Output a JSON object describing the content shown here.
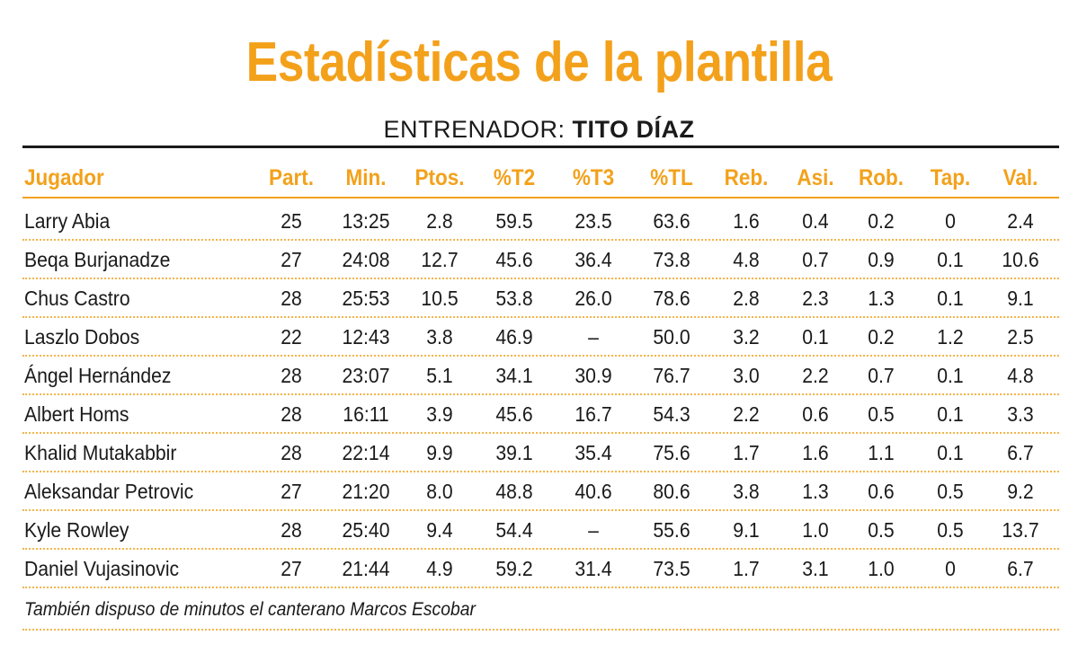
{
  "title": "Estadísticas de la plantilla",
  "coach": {
    "label": "ENTRENADOR: ",
    "name": "TITO DÍAZ"
  },
  "colors": {
    "accent": "#f3a11b",
    "text": "#1a1a1a"
  },
  "table": {
    "headers": [
      "Jugador",
      "Part.",
      "Min.",
      "Ptos.",
      "%T2",
      "%T3",
      "%TL",
      "Reb.",
      "Asi.",
      "Rob.",
      "Tap.",
      "Val."
    ],
    "rows": [
      [
        "Larry Abia",
        "25",
        "13:25",
        "2.8",
        "59.5",
        "23.5",
        "63.6",
        "1.6",
        "0.4",
        "0.2",
        "0",
        "2.4"
      ],
      [
        "Beqa Burjanadze",
        "27",
        "24:08",
        "12.7",
        "45.6",
        "36.4",
        "73.8",
        "4.8",
        "0.7",
        "0.9",
        "0.1",
        "10.6"
      ],
      [
        "Chus Castro",
        "28",
        "25:53",
        "10.5",
        "53.8",
        "26.0",
        "78.6",
        "2.8",
        "2.3",
        "1.3",
        "0.1",
        "9.1"
      ],
      [
        "Laszlo Dobos",
        "22",
        "12:43",
        "3.8",
        "46.9",
        "–",
        "50.0",
        "3.2",
        "0.1",
        "0.2",
        "1.2",
        "2.5"
      ],
      [
        "Ángel Hernández",
        "28",
        "23:07",
        "5.1",
        "34.1",
        "30.9",
        "76.7",
        "3.0",
        "2.2",
        "0.7",
        "0.1",
        "4.8"
      ],
      [
        "Albert Homs",
        "28",
        "16:11",
        "3.9",
        "45.6",
        "16.7",
        "54.3",
        "2.2",
        "0.6",
        "0.5",
        "0.1",
        "3.3"
      ],
      [
        "Khalid Mutakabbir",
        "28",
        "22:14",
        "9.9",
        "39.1",
        "35.4",
        "75.6",
        "1.7",
        "1.6",
        "1.1",
        "0.1",
        "6.7"
      ],
      [
        "Aleksandar Petrovic",
        "27",
        "21:20",
        "8.0",
        "48.8",
        "40.6",
        "80.6",
        "3.8",
        "1.3",
        "0.6",
        "0.5",
        "9.2"
      ],
      [
        "Kyle Rowley",
        "28",
        "25:40",
        "9.4",
        "54.4",
        "–",
        "55.6",
        "9.1",
        "1.0",
        "0.5",
        "0.5",
        "13.7"
      ],
      [
        "Daniel Vujasinovic",
        "27",
        "21:44",
        "4.9",
        "59.2",
        "31.4",
        "73.5",
        "1.7",
        "3.1",
        "1.0",
        "0",
        "6.7"
      ]
    ]
  },
  "footnote": "También dispuso de minutos el canterano Marcos Escobar"
}
